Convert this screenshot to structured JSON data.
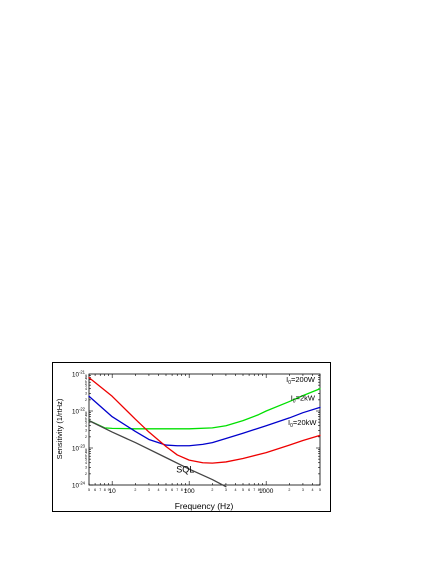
{
  "chart_data": {
    "type": "line",
    "title": "",
    "xlabel": "Frequency (Hz)",
    "ylabel": "Sensitivity (1/rtHz)",
    "xscale": "log",
    "yscale": "log",
    "xlim": [
      5,
      5000
    ],
    "ylim": [
      1e-24,
      1e-21
    ],
    "grid": false,
    "x_major_ticks": [
      {
        "value": 10,
        "label": "10"
      },
      {
        "value": 100,
        "label": "100"
      },
      {
        "value": 1000,
        "label": "1000"
      }
    ],
    "y_major_ticks": [
      {
        "value": 1e-24,
        "base": "10",
        "exp": "-24"
      },
      {
        "value": 1e-23,
        "base": "10",
        "exp": "-23"
      },
      {
        "value": 1e-22,
        "base": "10",
        "exp": "-22"
      },
      {
        "value": 1e-21,
        "base": "10",
        "exp": "-21"
      }
    ],
    "series": [
      {
        "color": "#00e000",
        "x": [
          5,
          8,
          10,
          20,
          50,
          100,
          200,
          300,
          500,
          800,
          1000,
          2000,
          3000,
          5000
        ],
        "y": [
          5.5e-23,
          3.5e-23,
          3.4e-23,
          3.3e-23,
          3.3e-23,
          3.3e-23,
          3.5e-23,
          4e-23,
          5.5e-23,
          8e-23,
          1e-22,
          1.8e-22,
          2.6e-22,
          4e-22
        ]
      },
      {
        "color": "#0000cc",
        "x": [
          5,
          10,
          20,
          30,
          50,
          70,
          100,
          150,
          200,
          300,
          500,
          1000,
          2000,
          3000,
          5000
        ],
        "y": [
          2.5e-22,
          7e-23,
          2.8e-23,
          1.7e-23,
          1.2e-23,
          1.15e-23,
          1.15e-23,
          1.25e-23,
          1.4e-23,
          1.8e-23,
          2.5e-23,
          4e-23,
          6.5e-23,
          9e-23,
          1.25e-22
        ]
      },
      {
        "color": "#ee0000",
        "x": [
          5,
          10,
          20,
          30,
          50,
          70,
          100,
          150,
          200,
          300,
          500,
          1000,
          2000,
          3000,
          5000
        ],
        "y": [
          8e-22,
          2.5e-22,
          6e-23,
          2.7e-23,
          1.1e-23,
          6.5e-24,
          4.7e-24,
          4e-24,
          3.9e-24,
          4.2e-24,
          5.2e-24,
          7.5e-24,
          1.2e-23,
          1.6e-23,
          2.2e-23
        ]
      },
      {
        "color": "#444444",
        "x": [
          5,
          10,
          20,
          50,
          100,
          200,
          300
        ],
        "y": [
          5.5e-23,
          2.7e-23,
          1.4e-23,
          5.5e-24,
          2.7e-24,
          1.4e-24,
          9e-25
        ]
      }
    ],
    "annotations": [
      {
        "kind": "power",
        "pre": "I",
        "sub": "0",
        "post": "=200W",
        "x": 4300,
        "y": 6e-22,
        "anchor": "end"
      },
      {
        "kind": "power",
        "pre": "I",
        "sub": "0",
        "post": "=2kW",
        "x": 4300,
        "y": 1.9e-22,
        "anchor": "end"
      },
      {
        "kind": "power",
        "pre": "I",
        "sub": "0",
        "post": "=20kW",
        "x": 4500,
        "y": 4.2e-23,
        "anchor": "end"
      },
      {
        "kind": "plain",
        "text": "SQL",
        "x": 68,
        "y": 2.2e-24,
        "anchor": "start"
      }
    ]
  }
}
